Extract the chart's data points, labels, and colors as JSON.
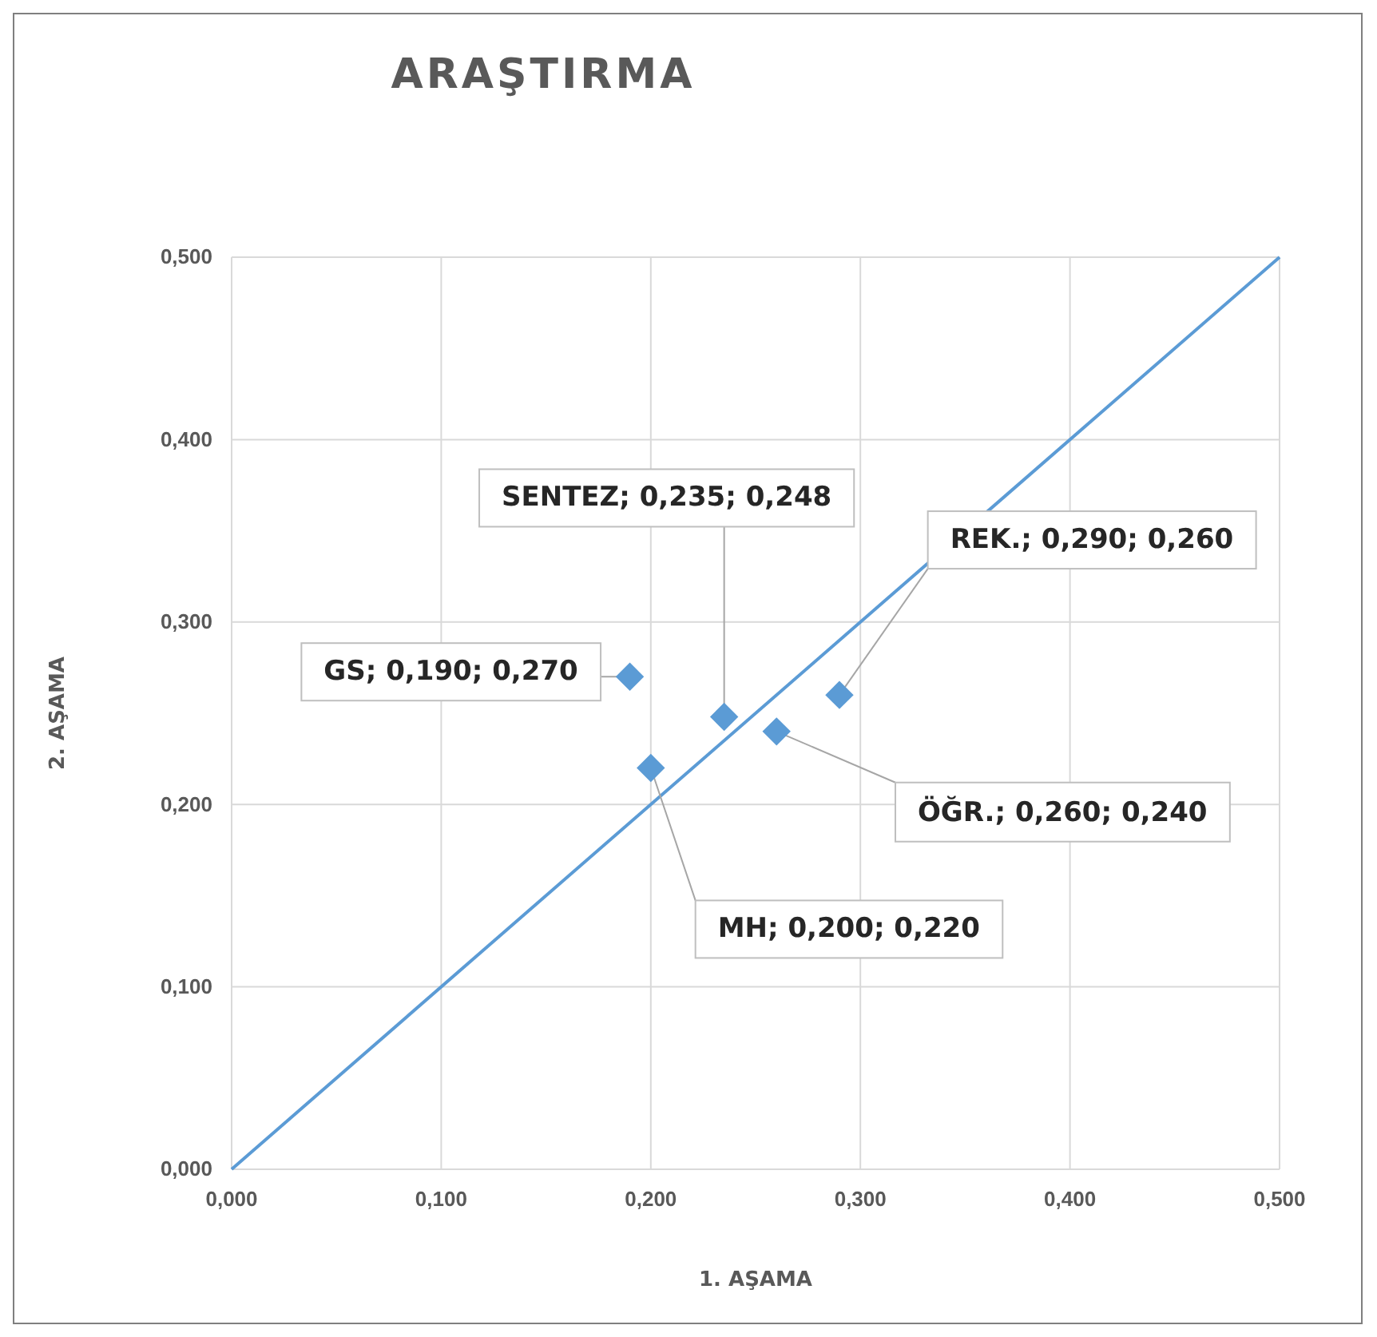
{
  "chart_data": {
    "type": "scatter",
    "title": "ARAŞTIRMA",
    "xlabel": "1. AŞAMA",
    "ylabel": "2. AŞAMA",
    "xlim": [
      0,
      0.5
    ],
    "ylim": [
      0,
      0.5
    ],
    "xticks": [
      {
        "value": 0,
        "label": "0,000"
      },
      {
        "value": 0.1,
        "label": "0,100"
      },
      {
        "value": 0.2,
        "label": "0,200"
      },
      {
        "value": 0.3,
        "label": "0,300"
      },
      {
        "value": 0.4,
        "label": "0,400"
      },
      {
        "value": 0.5,
        "label": "0,500"
      }
    ],
    "yticks": [
      {
        "value": 0,
        "label": "0,000"
      },
      {
        "value": 0.1,
        "label": "0,100"
      },
      {
        "value": 0.2,
        "label": "0,200"
      },
      {
        "value": 0.3,
        "label": "0,300"
      },
      {
        "value": 0.4,
        "label": "0,400"
      },
      {
        "value": 0.5,
        "label": "0,500"
      }
    ],
    "grid": true,
    "series": [
      {
        "type": "line",
        "marker": "none",
        "color": "#5b9bd5",
        "x": [
          0,
          0.5
        ],
        "values": [
          0,
          0.5
        ]
      },
      {
        "marker": "diamond",
        "color": "#5b9bd5",
        "x": [
          0.19,
          0.2,
          0.235,
          0.26,
          0.29
        ],
        "values": [
          0.27,
          0.22,
          0.248,
          0.24,
          0.26
        ],
        "value_labels": [
          "GS; 0,190; 0,270",
          "MH; 0,200; 0,220",
          "SENTEZ; 0,235; 0,248",
          "ÖĞR.; 0,260; 0,240",
          "REK.; 0,290; 0,260"
        ]
      }
    ]
  }
}
